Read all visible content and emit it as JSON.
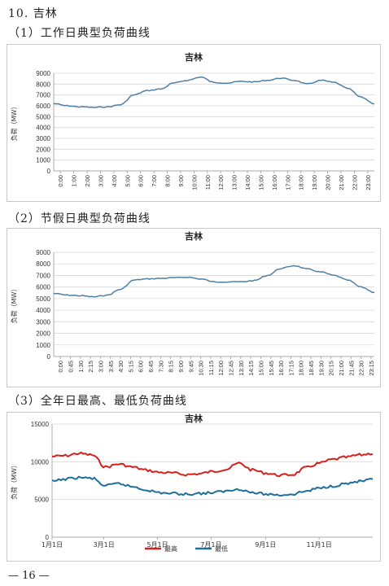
{
  "section_title": "10. 吉林",
  "subtitles": [
    "（1）工作日典型负荷曲线",
    "（2）节假日典型负荷曲线",
    "（3）全年日最高、最低负荷曲线"
  ],
  "page_number": "— 16 —",
  "colors": {
    "series_blue": "#4f7fa5",
    "high_red": "#d7201c",
    "low_blue": "#1d6f9c",
    "grid": "#d9d9d9"
  },
  "chart_data": [
    {
      "type": "line",
      "title": "吉林",
      "ylabel": "负荷（MW）",
      "ylim": [
        0,
        9000
      ],
      "yticks": [
        "0",
        "1000",
        "2000",
        "3000",
        "4000",
        "5000",
        "6000",
        "7000",
        "8000",
        "9000"
      ],
      "x_tick_labels": [
        "0:00",
        "1:00",
        "2:00",
        "3:00",
        "4:00",
        "5:00",
        "6:00",
        "7:00",
        "8:00",
        "9:00",
        "10:00",
        "11:00",
        "12:00",
        "13:00",
        "14:00",
        "15:00",
        "16:00",
        "17:00",
        "18:00",
        "19:00",
        "20:00",
        "21:00",
        "22:00",
        "23:00"
      ],
      "grid": true,
      "series": [
        {
          "x": [
            "0:00",
            "1:00",
            "2:00",
            "3:00",
            "4:00",
            "5:00",
            "6:00",
            "7:00",
            "8:00",
            "9:00",
            "10:00",
            "11:00",
            "12:00",
            "13:00",
            "14:00",
            "15:00",
            "16:00",
            "17:00",
            "18:00",
            "19:00",
            "20:00",
            "21:00",
            "22:00",
            "23:00",
            "24:00"
          ],
          "values": [
            6200,
            6000,
            5900,
            5850,
            5900,
            6100,
            7000,
            7400,
            7550,
            8100,
            8350,
            8650,
            8150,
            8100,
            8250,
            8200,
            8350,
            8550,
            8350,
            8000,
            8350,
            8150,
            7600,
            6800,
            6200
          ]
        }
      ]
    },
    {
      "type": "line",
      "title": "吉林",
      "ylabel": "负荷（MW）",
      "ylim": [
        0,
        9000
      ],
      "yticks": [
        "0",
        "1000",
        "2000",
        "3000",
        "4000",
        "5000",
        "6000",
        "7000",
        "8000",
        "9000"
      ],
      "x_tick_labels": [
        "0:00",
        "0:45",
        "1:30",
        "2:15",
        "3:00",
        "3:45",
        "4:30",
        "5:15",
        "6:00",
        "6:45",
        "7:30",
        "8:15",
        "9:00",
        "9:45",
        "10:30",
        "11:15",
        "12:00",
        "12:45",
        "13:30",
        "14:15",
        "15:00",
        "15:45",
        "16:30",
        "17:15",
        "18:00",
        "18:45",
        "19:30",
        "20:15",
        "21:00",
        "21:45",
        "22:30",
        "23:15"
      ],
      "grid": true,
      "series": [
        {
          "x": [
            "0:00",
            "1:00",
            "2:00",
            "3:00",
            "4:00",
            "5:00",
            "6:00",
            "7:00",
            "8:00",
            "9:00",
            "10:00",
            "11:00",
            "12:00",
            "13:00",
            "14:00",
            "15:00",
            "16:00",
            "17:00",
            "18:00",
            "19:00",
            "20:00",
            "21:00",
            "22:00",
            "23:00",
            "24:00"
          ],
          "values": [
            5450,
            5300,
            5250,
            5150,
            5300,
            5800,
            6600,
            6700,
            6750,
            6800,
            6850,
            6700,
            6450,
            6450,
            6450,
            6550,
            7000,
            7600,
            7850,
            7550,
            7300,
            7000,
            6600,
            6000,
            5550
          ]
        }
      ]
    },
    {
      "type": "line",
      "title": "吉林",
      "ylabel": "负荷（MW）",
      "ylim": [
        0,
        15000
      ],
      "yticks": [
        "0",
        "5000",
        "10000",
        "15000"
      ],
      "x_tick_labels": [
        "1月1日",
        "3月1日",
        "5月1日",
        "7月1日",
        "9月1日",
        "11月1日"
      ],
      "grid": true,
      "legend_position": "bottom-center",
      "series": [
        {
          "name": "最高",
          "x": [
            "1月1日",
            "1月15日",
            "2月1日",
            "2月15日",
            "3月1日",
            "3月15日",
            "4月1日",
            "4月15日",
            "5月1日",
            "5月15日",
            "6月1日",
            "6月15日",
            "7月1日",
            "7月15日",
            "8月1日",
            "8月15日",
            "9月1日",
            "9月15日",
            "10月1日",
            "10月15日",
            "11月1日",
            "11月15日",
            "12月1日",
            "12月15日",
            "12月31日"
          ],
          "values": [
            10700,
            10800,
            11100,
            10900,
            9300,
            9700,
            9300,
            8900,
            8600,
            8500,
            8300,
            8400,
            8700,
            9000,
            9800,
            8900,
            8500,
            8200,
            8300,
            9200,
            9800,
            10300,
            10600,
            10900,
            11100
          ]
        },
        {
          "name": "最低",
          "x": [
            "1月1日",
            "1月15日",
            "2月1日",
            "2月15日",
            "3月1日",
            "3月15日",
            "4月1日",
            "4月15日",
            "5月1日",
            "5月15日",
            "6月1日",
            "6月15日",
            "7月1日",
            "7月15日",
            "8月1日",
            "8月15日",
            "9月1日",
            "9月15日",
            "10月1日",
            "10月15日",
            "11月1日",
            "11月15日",
            "12月1日",
            "12月15日",
            "12月31日"
          ],
          "values": [
            7400,
            7700,
            7900,
            7800,
            6800,
            7100,
            6700,
            6300,
            5900,
            5800,
            5700,
            5800,
            5900,
            6100,
            6400,
            5900,
            5700,
            5600,
            5700,
            6100,
            6500,
            6800,
            7100,
            7400,
            7600
          ]
        }
      ]
    }
  ]
}
